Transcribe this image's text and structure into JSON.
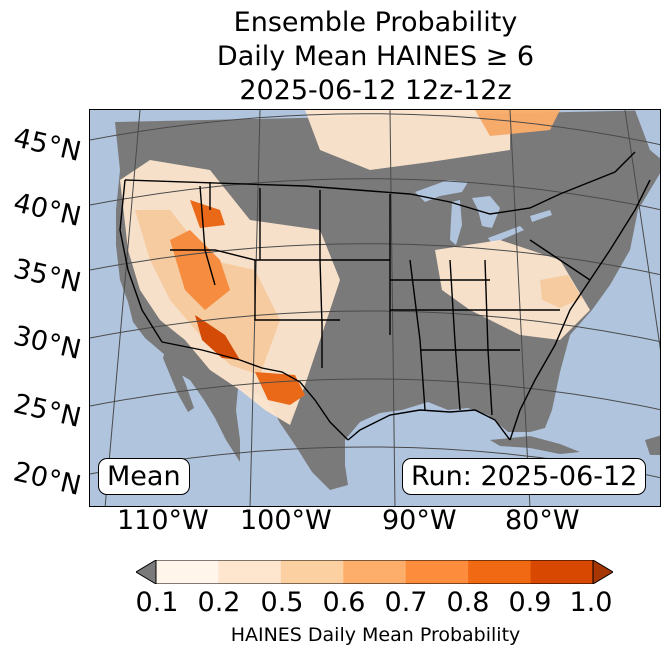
{
  "title": {
    "line1": "Ensemble Probability",
    "line2": "Daily Mean HAINES ≥ 6",
    "line3": "2025-06-12 12z-12z"
  },
  "map": {
    "latitude_labels": [
      "45°N",
      "40°N",
      "35°N",
      "30°N",
      "25°N",
      "20°N"
    ],
    "longitude_labels": [
      "110°W",
      "100°W",
      "90°W",
      "80°W"
    ],
    "colors": {
      "ocean": "#b0c4de",
      "land_below_threshold": "#7a7a7a",
      "borders": "#000000",
      "graticule": "#4a4a4a"
    }
  },
  "mean_label": "Mean",
  "run_label": "Run: 2025-06-12",
  "colorbar": {
    "label": "HAINES Daily Mean Probability",
    "ticks": [
      "0.1",
      "0.2",
      "0.5",
      "0.6",
      "0.7",
      "0.8",
      "0.9",
      "1.0"
    ],
    "under_color": "#7a7a7a",
    "over_color": "#a63603",
    "bin_colors": [
      "#fff5eb",
      "#fee6ce",
      "#fdd0a2",
      "#fdae6b",
      "#fd8d3c",
      "#f16913",
      "#d94801"
    ]
  }
}
